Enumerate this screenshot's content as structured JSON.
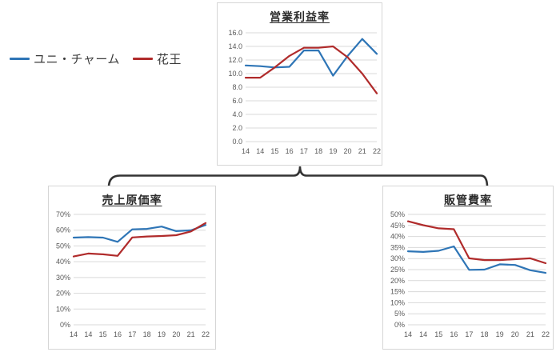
{
  "legend": {
    "items": [
      {
        "id": "unicharm",
        "label": "ユニ・チャーム",
        "color": "#2e75b6"
      },
      {
        "id": "kao",
        "label": "花王",
        "color": "#b02b2b"
      }
    ]
  },
  "connector": {
    "shape": "curly-brace",
    "color": "#333333"
  },
  "chart_data": [
    {
      "id": "operating-profit-margin",
      "type": "line",
      "title": "営業利益率",
      "categories": [
        "14",
        "14",
        "15",
        "16",
        "17",
        "18",
        "19",
        "20",
        "21",
        "22"
      ],
      "series": [
        {
          "id": "unicharm",
          "name": "ユニ・チャーム",
          "color": "#2e75b6",
          "values": [
            11.2,
            11.1,
            10.9,
            11.0,
            13.4,
            13.4,
            9.7,
            12.6,
            15.1,
            12.9
          ]
        },
        {
          "id": "kao",
          "name": "花王",
          "color": "#b02b2b",
          "values": [
            9.4,
            9.4,
            10.9,
            12.6,
            13.8,
            13.8,
            14.0,
            12.4,
            10.0,
            7.1
          ]
        }
      ],
      "ylim": [
        0,
        16
      ],
      "ytick_step": 2,
      "ytick_format": "fixed1",
      "grid": true,
      "legend_position": "external-left"
    },
    {
      "id": "cogs-ratio",
      "type": "line",
      "title": "売上原価率",
      "categories": [
        "14",
        "14",
        "15",
        "16",
        "17",
        "18",
        "19",
        "20",
        "21",
        "22"
      ],
      "series": [
        {
          "id": "unicharm",
          "name": "ユニ・チャーム",
          "color": "#2e75b6",
          "values": [
            55.3,
            55.6,
            55.3,
            52.6,
            60.5,
            60.8,
            62.3,
            59.4,
            59.9,
            63.3
          ]
        },
        {
          "id": "kao",
          "name": "花王",
          "color": "#b02b2b",
          "values": [
            43.3,
            45.2,
            44.7,
            43.7,
            55.4,
            56.0,
            56.3,
            56.8,
            59.2,
            64.5
          ]
        }
      ],
      "ylim": [
        0,
        70
      ],
      "ytick_step": 10,
      "ytick_format": "percent",
      "grid": true
    },
    {
      "id": "sga-ratio",
      "type": "line",
      "title": "販管費率",
      "categories": [
        "14",
        "14",
        "15",
        "16",
        "17",
        "18",
        "19",
        "20",
        "21",
        "22"
      ],
      "series": [
        {
          "id": "unicharm",
          "name": "ユニ・チャーム",
          "color": "#2e75b6",
          "values": [
            33.3,
            33.0,
            33.5,
            35.5,
            24.9,
            25.0,
            27.4,
            27.1,
            24.7,
            23.5
          ]
        },
        {
          "id": "kao",
          "name": "花王",
          "color": "#b02b2b",
          "values": [
            46.9,
            45.1,
            43.7,
            43.3,
            30.1,
            29.3,
            29.3,
            29.7,
            30.1,
            27.9
          ]
        }
      ],
      "ylim": [
        0,
        50
      ],
      "ytick_step": 5,
      "ytick_format": "percent",
      "grid": true
    }
  ]
}
